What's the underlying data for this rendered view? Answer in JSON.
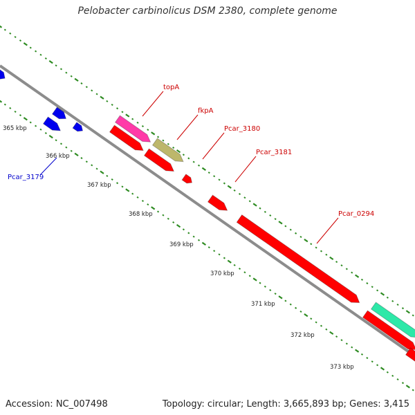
{
  "title": "Pelobacter carbinolicus DSM 2380, complete genome",
  "footer": {
    "accession": "Accession: NC_007498",
    "summary": "Topology: circular; Length: 3,665,893 bp; Genes: 3,415"
  },
  "colors": {
    "backbone": "#8c8c8c",
    "tick": "#2e8b22",
    "cds_red": "#ff0000",
    "cds_blue": "#0000ee",
    "cds_pink": "#ff3aa8",
    "cds_olive": "#bdb76b",
    "cds_teal": "#2de8a8",
    "label_red": "#cc0000",
    "label_blue": "#0000cc"
  },
  "kbp_labels": [
    "365 kbp",
    "366 kbp",
    "367 kbp",
    "368 kbp",
    "369 kbp",
    "370 kbp",
    "371 kbp",
    "372 kbp",
    "373 kbp"
  ],
  "gene_labels": [
    {
      "name": "topA",
      "color_key": "label_red"
    },
    {
      "name": "fkpA",
      "color_key": "label_red"
    },
    {
      "name": "Pcar_3180",
      "color_key": "label_red"
    },
    {
      "name": "Pcar_3181",
      "color_key": "label_red"
    },
    {
      "name": "Pcar_0294",
      "color_key": "label_red"
    },
    {
      "name": "Pcar_3179",
      "color_key": "label_blue"
    }
  ]
}
